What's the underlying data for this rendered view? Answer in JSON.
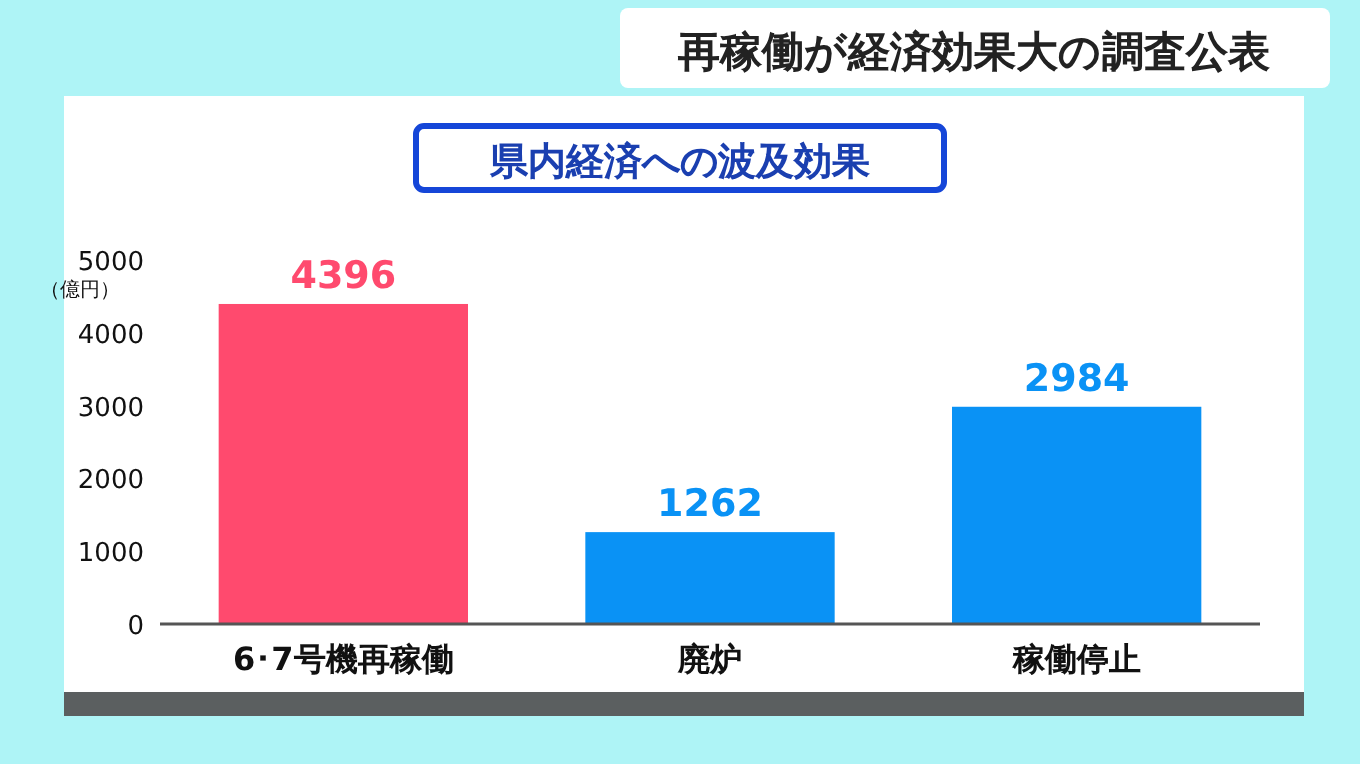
{
  "chart_data": {
    "type": "bar",
    "title": "再稼働が経済効果大の調査公表",
    "subtitle": "県内経済への波及効果",
    "ylabel": "（億円）",
    "categories": [
      "6･7号機再稼働",
      "廃炉",
      "稼働停止"
    ],
    "values": [
      4396,
      1262,
      2984
    ],
    "colors": [
      "#ff4a6e",
      "#0a92f5",
      "#0a92f5"
    ],
    "ylim": [
      0,
      5000
    ],
    "yticks": [
      0,
      1000,
      2000,
      3000,
      4000,
      5000
    ],
    "data_labels": true
  }
}
